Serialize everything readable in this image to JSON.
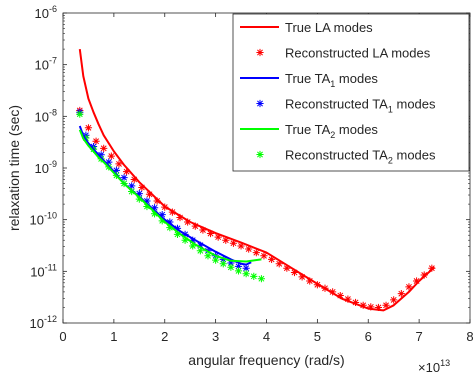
{
  "chart_data": {
    "type": "line",
    "title": "",
    "xlabel": "angular frequency (rad/s)",
    "ylabel": "relaxation time (sec)",
    "x_multiplier_label": "×10",
    "x_multiplier_exponent": "13",
    "x_scale": "linear",
    "y_scale": "log",
    "xlim": [
      0,
      8
    ],
    "ylim_exponents": [
      -12,
      -6
    ],
    "x_ticks": [
      "0",
      "1",
      "2",
      "3",
      "4",
      "5",
      "6",
      "7",
      "8"
    ],
    "y_tick_base": "10",
    "y_tick_exponents": [
      "-12",
      "-11",
      "-10",
      "-9",
      "-8",
      "-7",
      "-6"
    ],
    "grid": false,
    "legend_position": "top-right",
    "colors": {
      "la": "#ff0000",
      "ta1": "#0000ff",
      "ta2": "#00ff00",
      "axis": "#262626"
    },
    "legend": [
      {
        "name": "True LA modes",
        "marker": "line",
        "color": "la"
      },
      {
        "name": "Reconstructed LA modes",
        "marker": "star",
        "color": "la"
      },
      {
        "name": "True TA",
        "sub": "1",
        "suffix": " modes",
        "marker": "line",
        "color": "ta1"
      },
      {
        "name": "Reconstructed TA",
        "sub": "1",
        "suffix": " modes",
        "marker": "star",
        "color": "ta1"
      },
      {
        "name": "True TA",
        "sub": "2",
        "suffix": " modes",
        "marker": "line",
        "color": "ta2"
      },
      {
        "name": "Reconstructed TA",
        "sub": "2",
        "suffix": " modes",
        "marker": "star",
        "color": "ta2"
      }
    ],
    "series": [
      {
        "name": "True LA modes",
        "kind": "line",
        "color": "la",
        "x": [
          0.33,
          0.4,
          0.5,
          0.6,
          0.7,
          0.8,
          1.0,
          1.2,
          1.5,
          2.0,
          2.5,
          3.0,
          3.5,
          4.0,
          4.5,
          5.0,
          5.5,
          6.0,
          6.3,
          6.5,
          6.8,
          7.0,
          7.3
        ],
        "y": [
          2e-07,
          6e-08,
          2.2e-08,
          1.2e-08,
          7e-09,
          4.3e-09,
          2.1e-09,
          1.15e-09,
          5.3e-10,
          1.8e-10,
          9e-11,
          5.5e-11,
          3.6e-11,
          2.3e-11,
          1.15e-11,
          5.7e-12,
          2.9e-12,
          1.9e-12,
          1.75e-12,
          2.2e-12,
          4e-12,
          6.5e-12,
          1.2e-11
        ]
      },
      {
        "name": "Reconstructed LA modes",
        "kind": "markers",
        "color": "la",
        "x": [
          0.33,
          0.5,
          0.65,
          0.8,
          0.95,
          1.1,
          1.25,
          1.4,
          1.55,
          1.7,
          1.85,
          2.0,
          2.15,
          2.3,
          2.45,
          2.6,
          2.75,
          2.9,
          3.05,
          3.2,
          3.35,
          3.5,
          3.65,
          3.8,
          3.95,
          4.1,
          4.25,
          4.4,
          4.55,
          4.7,
          4.85,
          5.0,
          5.15,
          5.3,
          5.45,
          5.6,
          5.75,
          5.9,
          6.05,
          6.2,
          6.35,
          6.5,
          6.65,
          6.8,
          6.95,
          7.1,
          7.25
        ],
        "y": [
          1.3e-08,
          6e-09,
          3.3e-09,
          2.4e-09,
          1.7e-09,
          1.2e-09,
          8.5e-10,
          6e-10,
          4.2e-10,
          3.1e-10,
          2.3e-10,
          1.75e-10,
          1.4e-10,
          1.1e-10,
          9e-11,
          7.5e-11,
          6.3e-11,
          5.4e-11,
          4.6e-11,
          4e-11,
          3.5e-11,
          3.1e-11,
          2.7e-11,
          2.3e-11,
          2e-11,
          1.7e-11,
          1.4e-11,
          1.15e-11,
          9.5e-12,
          7.8e-12,
          6.5e-12,
          5.5e-12,
          4.7e-12,
          4e-12,
          3.4e-12,
          2.9e-12,
          2.5e-12,
          2.2e-12,
          2.05e-12,
          2e-12,
          2.2e-12,
          2.8e-12,
          3.7e-12,
          5e-12,
          6.5e-12,
          8.5e-12,
          1.15e-11
        ]
      },
      {
        "name": "True TA1 modes",
        "kind": "line",
        "color": "ta1",
        "x": [
          0.33,
          0.4,
          0.5,
          0.6,
          0.7,
          0.8,
          1.0,
          1.2,
          1.5,
          1.8,
          2.0,
          2.3,
          2.6,
          3.0,
          3.3,
          3.5,
          3.6,
          3.7
        ],
        "y": [
          6.5e-09,
          4.2e-09,
          3e-09,
          2.3e-09,
          1.8e-09,
          1.4e-09,
          8.5e-10,
          5e-10,
          2.8e-10,
          1.5e-10,
          1e-10,
          6e-11,
          4e-11,
          2.4e-11,
          1.7e-11,
          1.4e-11,
          1.35e-11,
          1.5e-11
        ]
      },
      {
        "name": "Reconstructed TA1 modes",
        "kind": "markers",
        "color": "ta1",
        "x": [
          0.33,
          0.45,
          0.6,
          0.75,
          0.9,
          1.05,
          1.2,
          1.35,
          1.5,
          1.65,
          1.8,
          1.95,
          2.1,
          2.25,
          2.4,
          2.55,
          2.7,
          2.85,
          3.0,
          3.15,
          3.3,
          3.45,
          3.6
        ],
        "y": [
          1.2e-08,
          4.3e-09,
          2.6e-09,
          1.8e-09,
          1.3e-09,
          9e-10,
          6.5e-10,
          4.5e-10,
          3.2e-10,
          2.3e-10,
          1.7e-10,
          1.25e-10,
          9e-11,
          6.8e-11,
          5.2e-11,
          4e-11,
          3.2e-11,
          2.5e-11,
          2e-11,
          1.7e-11,
          1.45e-11,
          1.25e-11,
          1.15e-11
        ]
      },
      {
        "name": "True TA2 modes",
        "kind": "line",
        "color": "ta2",
        "x": [
          0.33,
          0.4,
          0.5,
          0.6,
          0.7,
          0.8,
          1.0,
          1.2,
          1.5,
          1.8,
          2.0,
          2.3,
          2.6,
          3.0,
          3.3,
          3.6,
          3.9
        ],
        "y": [
          5.5e-09,
          3.7e-09,
          2.7e-09,
          2.1e-09,
          1.6e-09,
          1.3e-09,
          8e-10,
          5e-10,
          2.7e-10,
          1.4e-10,
          9e-11,
          5.3e-11,
          3.3e-11,
          2e-11,
          1.6e-11,
          1.55e-11,
          1.7e-11
        ]
      },
      {
        "name": "Reconstructed TA2 modes",
        "kind": "markers",
        "color": "ta2",
        "x": [
          0.33,
          0.45,
          0.6,
          0.75,
          0.9,
          1.05,
          1.2,
          1.35,
          1.5,
          1.65,
          1.8,
          1.95,
          2.1,
          2.25,
          2.4,
          2.55,
          2.7,
          2.85,
          3.0,
          3.15,
          3.3,
          3.45,
          3.6,
          3.75,
          3.9
        ],
        "y": [
          1.1e-08,
          3.8e-09,
          2.3e-09,
          1.5e-09,
          1.05e-09,
          7.2e-10,
          5e-10,
          3.5e-10,
          2.5e-10,
          1.8e-10,
          1.3e-10,
          9.5e-11,
          7e-11,
          5.2e-11,
          4e-11,
          3.1e-11,
          2.5e-11,
          2e-11,
          1.65e-11,
          1.4e-11,
          1.2e-11,
          1.02e-11,
          9e-12,
          8e-12,
          7.2e-12
        ]
      }
    ]
  }
}
